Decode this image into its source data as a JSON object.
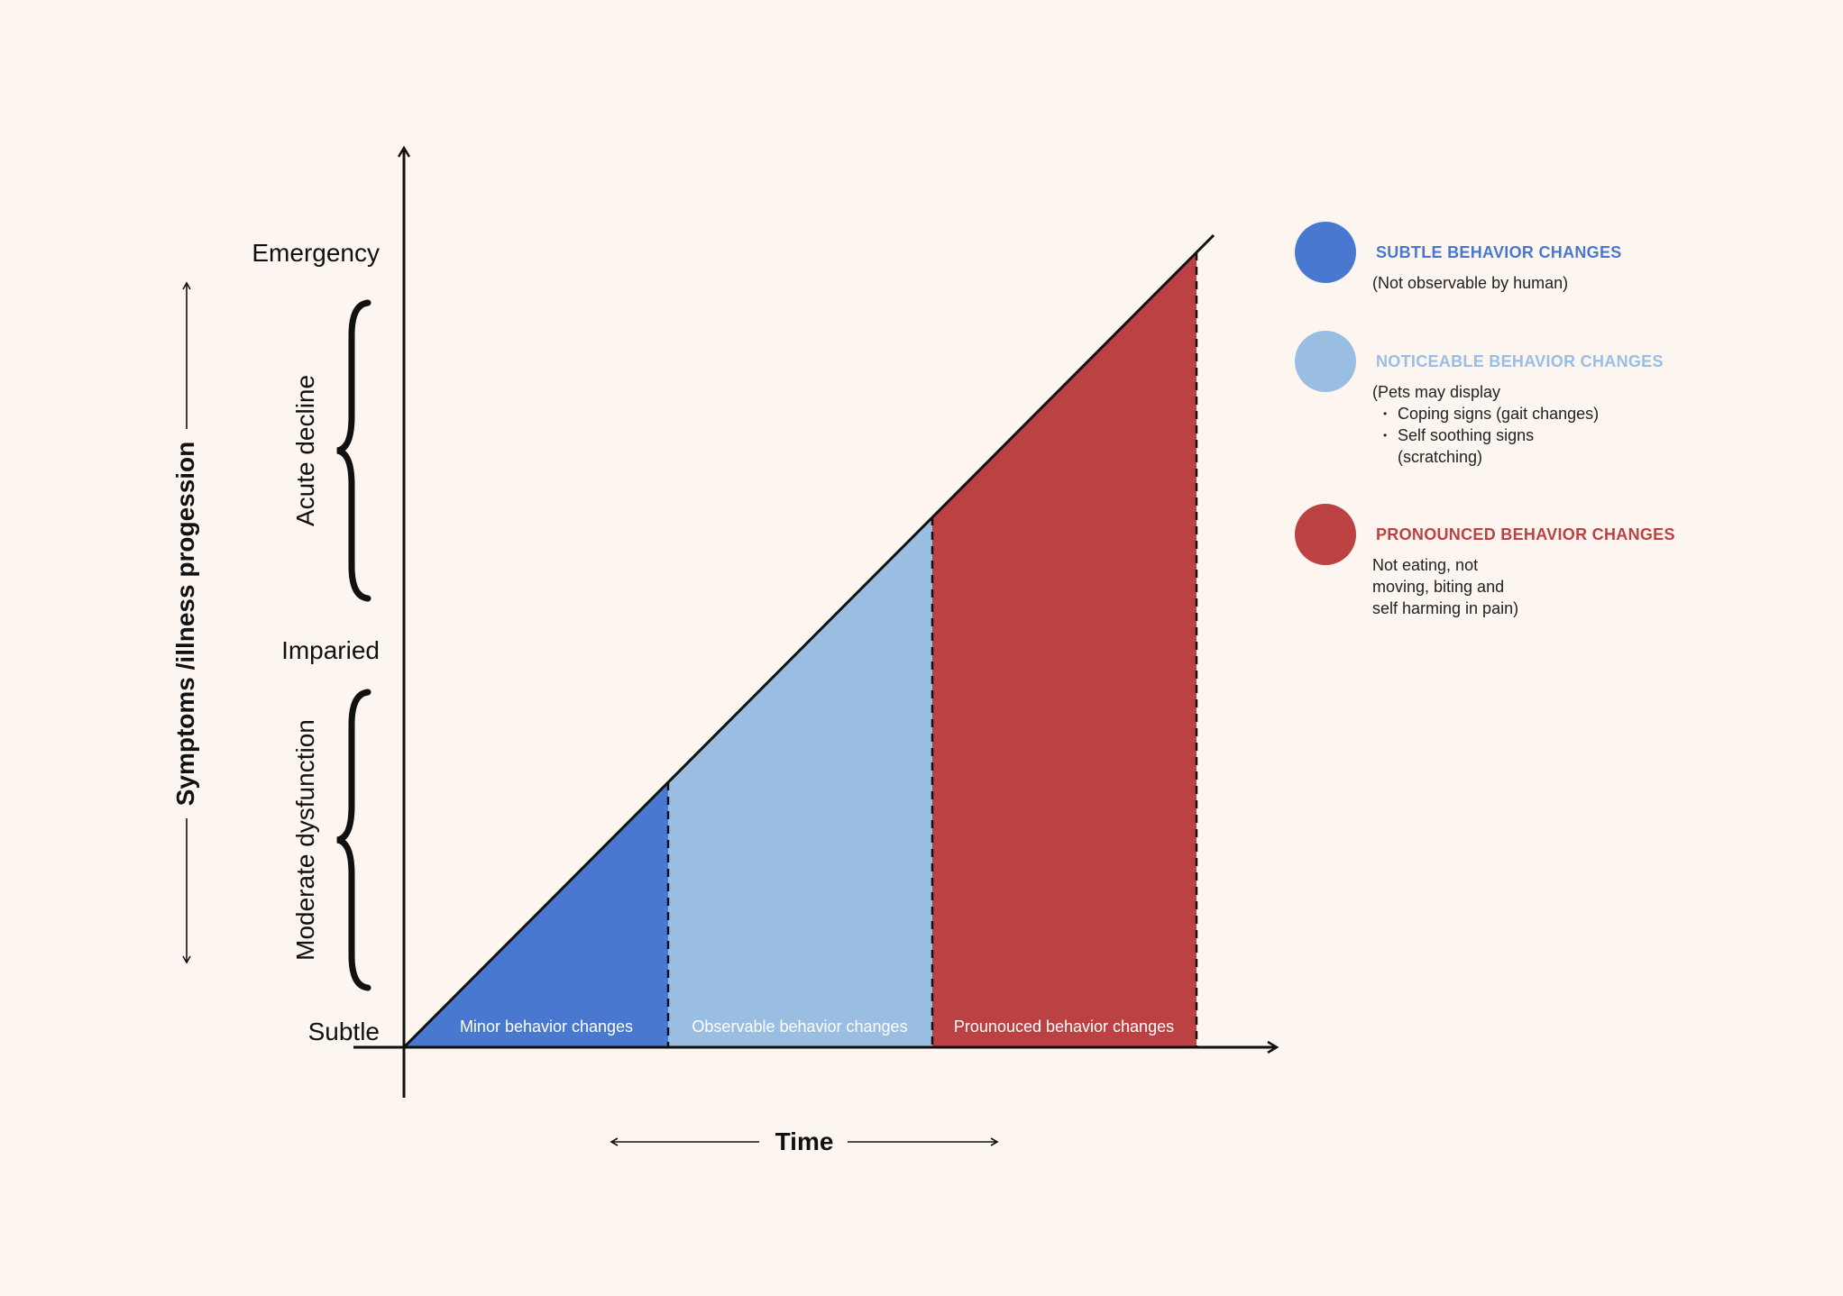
{
  "y_axis": {
    "label": "Symptoms /illness progession",
    "levels": [
      "Emergency",
      "Imparied",
      "Subtle"
    ],
    "stages": [
      "Acute decline",
      "Moderate dysfunction"
    ]
  },
  "x_axis": {
    "label": "Time"
  },
  "regions": [
    {
      "label": "Minor behavior changes",
      "color": "#4878cf"
    },
    {
      "label": "Observable behavior changes",
      "color": "#9abde2"
    },
    {
      "label": "Prounouced behavior changes",
      "color": "#bc4142"
    }
  ],
  "legend": [
    {
      "title": "SUBTLE BEHAVIOR CHANGES",
      "color": "#4878cf",
      "desc": "(Not observable by human)"
    },
    {
      "title": "NOTICEABLE BEHAVIOR CHANGES",
      "color": "#9abde2",
      "intro": "(Pets may display",
      "bullets": [
        "Coping signs (gait changes)",
        "Self soothing signs",
        "(scratching)"
      ]
    },
    {
      "title": "PRONOUNCED BEHAVIOR CHANGES",
      "color": "#bc4142",
      "lines": [
        "Not eating, not",
        "moving, biting and",
        "self harming in pain)"
      ]
    }
  ]
}
